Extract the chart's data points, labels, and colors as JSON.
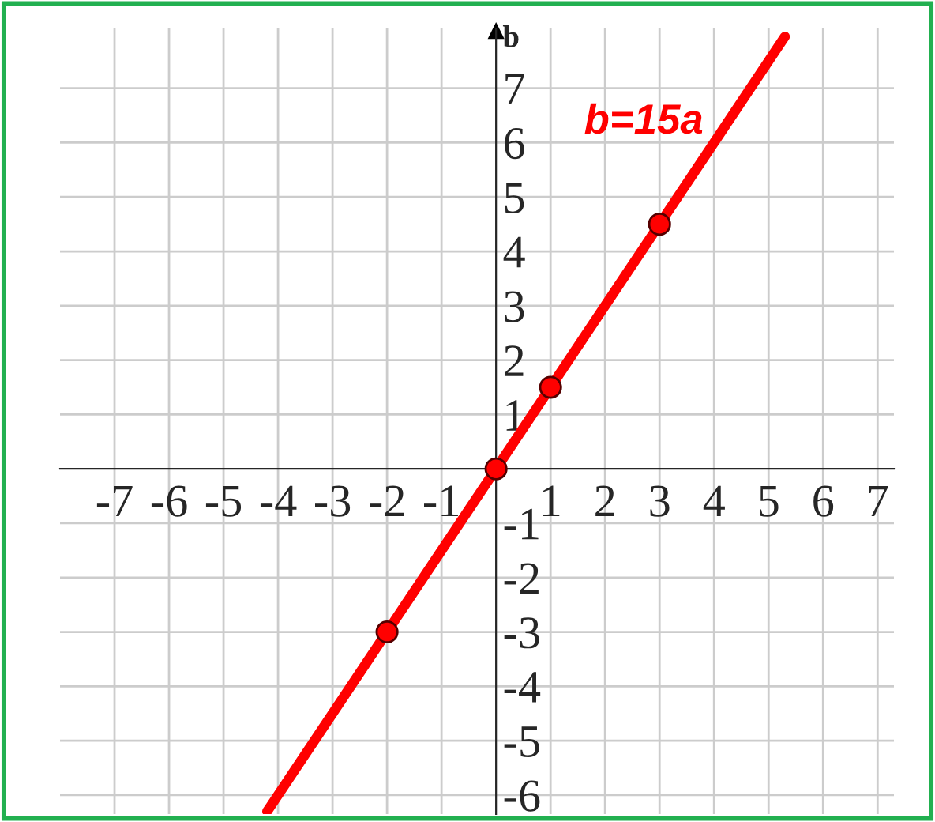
{
  "chart_data": {
    "type": "line",
    "ylabel": "b",
    "xlim": [
      -8,
      7.3
    ],
    "ylim": [
      -6.35,
      8.1
    ],
    "xticks": [
      -7,
      -6,
      -5,
      -4,
      -3,
      -2,
      -1,
      1,
      2,
      3,
      4,
      5,
      6,
      7
    ],
    "yticks": [
      -6,
      -5,
      -4,
      -3,
      -2,
      -1,
      1,
      2,
      3,
      4,
      5,
      6,
      7
    ],
    "grid": true,
    "series": [
      {
        "color": "#ff0000",
        "x": [
          -4.2,
          5.3
        ],
        "values": [
          -6.3,
          7.95
        ],
        "marker": "none"
      },
      {
        "type": "scatter",
        "color": "#ff0000",
        "x": [
          -2,
          0,
          1,
          3
        ],
        "values": [
          -3,
          0,
          1.5,
          4.5
        ],
        "marker": "circle"
      }
    ],
    "annotations": [
      "b=15a"
    ]
  }
}
